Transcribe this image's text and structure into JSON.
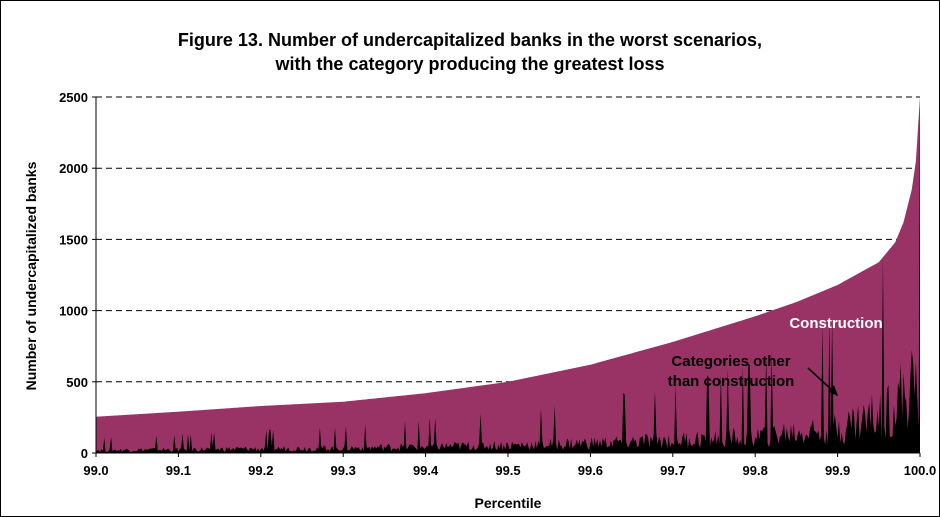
{
  "chart_data": {
    "type": "area",
    "title_line1": "Figure 13. Number of undercapitalized banks in the worst scenarios,",
    "title_line2": "with the category producing the greatest loss",
    "xlabel": "Percentile",
    "ylabel": "Number of undercapitalized banks",
    "xlim": [
      99.0,
      100.0
    ],
    "ylim": [
      0,
      2500
    ],
    "x_ticks": [
      "99.0",
      "99.1",
      "99.2",
      "99.3",
      "99.4",
      "99.5",
      "99.6",
      "99.7",
      "99.8",
      "99.9",
      "100.0"
    ],
    "y_ticks": [
      "0",
      "500",
      "1000",
      "1500",
      "2000",
      "2500"
    ],
    "grid": "horizontal-dashed",
    "series": [
      {
        "name": "Construction",
        "color": "#993366",
        "x": [
          99.0,
          99.1,
          99.2,
          99.3,
          99.4,
          99.5,
          99.6,
          99.7,
          99.8,
          99.85,
          99.9,
          99.95,
          99.97,
          99.98,
          99.99,
          99.995,
          100.0
        ],
        "values": [
          255,
          290,
          330,
          360,
          420,
          500,
          620,
          780,
          960,
          1060,
          1180,
          1340,
          1480,
          1620,
          1850,
          2050,
          2500
        ]
      },
      {
        "name": "Categories other than construction",
        "color": "#000000",
        "x": [
          99.0,
          99.1,
          99.2,
          99.3,
          99.4,
          99.5,
          99.6,
          99.7,
          99.8,
          99.9,
          99.95,
          100.0
        ],
        "values": [
          20,
          25,
          30,
          35,
          45,
          55,
          70,
          90,
          120,
          180,
          280,
          500
        ]
      }
    ],
    "annotations": [
      {
        "text": "Construction",
        "color": "#ffffff"
      },
      {
        "text_line1": "Categories other",
        "text_line2": "than construction",
        "color": "#000000"
      }
    ]
  }
}
